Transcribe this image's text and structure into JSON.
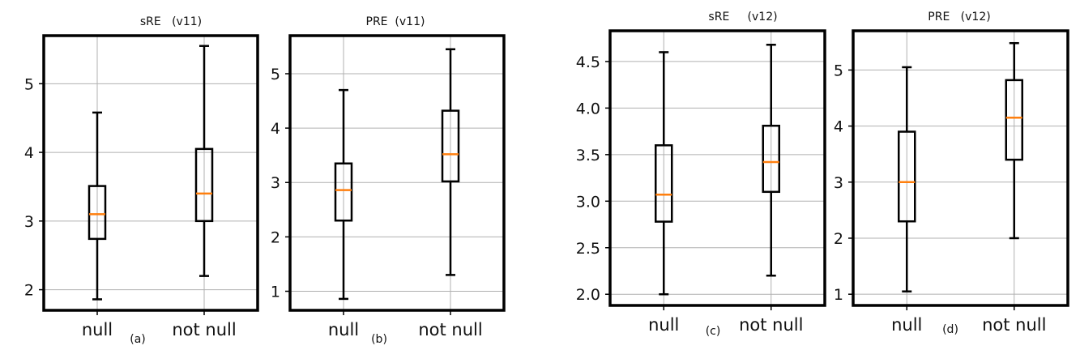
{
  "chart_data": [
    {
      "type": "boxplot",
      "title": "sRE   (v11)",
      "panel_label": "(a)",
      "categories": [
        "null",
        "not null"
      ],
      "ylim": [
        1.7,
        5.7
      ],
      "yticks": [
        2,
        3,
        4,
        5
      ],
      "grid": true,
      "boxes": [
        {
          "category": "null",
          "whisker_low": 1.86,
          "q1": 2.74,
          "median": 3.1,
          "q3": 3.51,
          "whisker_high": 4.58
        },
        {
          "category": "not null",
          "whisker_low": 2.2,
          "q1": 3.0,
          "median": 3.4,
          "q3": 4.05,
          "whisker_high": 5.55
        }
      ]
    },
    {
      "type": "boxplot",
      "title": "PRE  (v11)",
      "panel_label": "(b)",
      "categories": [
        "null",
        "not null"
      ],
      "ylim": [
        0.65,
        5.7
      ],
      "yticks": [
        1,
        2,
        3,
        4,
        5
      ],
      "grid": true,
      "boxes": [
        {
          "category": "null",
          "whisker_low": 0.86,
          "q1": 2.3,
          "median": 2.86,
          "q3": 3.35,
          "whisker_high": 4.7
        },
        {
          "category": "not null",
          "whisker_low": 1.3,
          "q1": 3.02,
          "median": 3.52,
          "q3": 4.32,
          "whisker_high": 5.45
        }
      ]
    },
    {
      "type": "boxplot",
      "title": "sRE     (v12)",
      "panel_label": "(c)",
      "categories": [
        "null",
        "not null"
      ],
      "ylim": [
        1.88,
        4.83
      ],
      "yticks": [
        2.0,
        2.5,
        3.0,
        3.5,
        4.0,
        4.5
      ],
      "ytick_labels": [
        "2.0",
        "2.5",
        "3.0",
        "3.5",
        "4.0",
        "4.5"
      ],
      "grid": true,
      "boxes": [
        {
          "category": "null",
          "whisker_low": 2.0,
          "q1": 2.78,
          "median": 3.07,
          "q3": 3.6,
          "whisker_high": 4.6
        },
        {
          "category": "not null",
          "whisker_low": 2.2,
          "q1": 3.1,
          "median": 3.42,
          "q3": 3.81,
          "whisker_high": 4.68
        }
      ]
    },
    {
      "type": "boxplot",
      "title": "PRE   (v12)",
      "panel_label": "(d)",
      "categories": [
        "null",
        "not null"
      ],
      "ylim": [
        0.8,
        5.7
      ],
      "yticks": [
        1,
        2,
        3,
        4,
        5
      ],
      "grid": true,
      "boxes": [
        {
          "category": "null",
          "whisker_low": 1.05,
          "q1": 2.3,
          "median": 3.0,
          "q3": 3.9,
          "whisker_high": 5.05
        },
        {
          "category": "not null",
          "whisker_low": 2.0,
          "q1": 3.4,
          "median": 4.15,
          "q3": 4.82,
          "whisker_high": 5.48
        }
      ]
    }
  ],
  "colors": {
    "box": "#000000",
    "median": "#ff7f0e",
    "grid": "#b0b0b0"
  }
}
